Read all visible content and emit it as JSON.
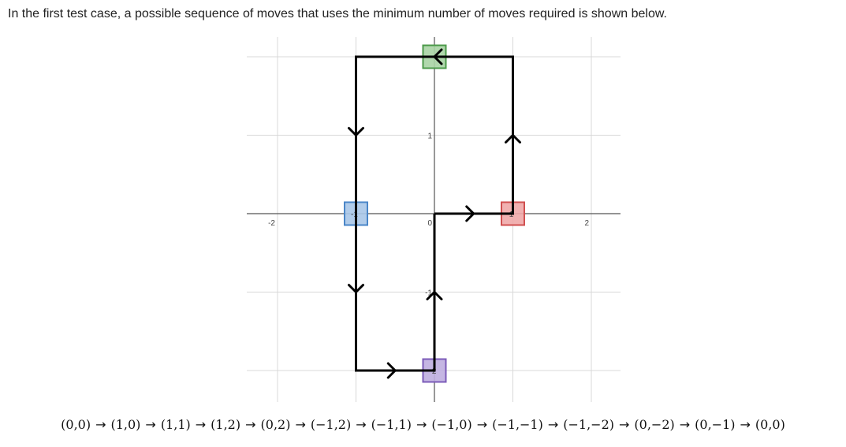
{
  "intro_text": "In the first test case, a possible sequence of moves that uses the minimum number of moves required is shown below.",
  "grid": {
    "x_labels": [
      "-2",
      "0",
      "2"
    ],
    "y_labels": [
      "1",
      "-1"
    ],
    "x_ticks": [
      -2,
      0,
      2
    ],
    "y_ticks": [
      1,
      -1
    ],
    "range_x": [
      -2,
      2
    ],
    "range_y": [
      -2,
      2
    ]
  },
  "path": [
    [
      0,
      0
    ],
    [
      1,
      0
    ],
    [
      1,
      1
    ],
    [
      1,
      2
    ],
    [
      0,
      2
    ],
    [
      -1,
      2
    ],
    [
      -1,
      1
    ],
    [
      -1,
      0
    ],
    [
      -1,
      -1
    ],
    [
      -1,
      -2
    ],
    [
      0,
      -2
    ],
    [
      0,
      -1
    ],
    [
      0,
      0
    ]
  ],
  "arrows": [
    {
      "at": [
        0.5,
        0
      ],
      "dir": "right"
    },
    {
      "at": [
        1,
        1
      ],
      "dir": "up"
    },
    {
      "at": [
        0,
        2
      ],
      "dir": "left"
    },
    {
      "at": [
        -1,
        1
      ],
      "dir": "down"
    },
    {
      "at": [
        -1,
        -1
      ],
      "dir": "down"
    },
    {
      "at": [
        -0.5,
        -2
      ],
      "dir": "right"
    },
    {
      "at": [
        0,
        -1
      ],
      "dir": "up"
    }
  ],
  "markers": [
    {
      "name": "green",
      "at": [
        0,
        2
      ],
      "fill": "#a8d4a4",
      "stroke": "#4c9a4a",
      "label": ""
    },
    {
      "name": "red",
      "at": [
        1,
        0
      ],
      "fill": "#f0a8a8",
      "stroke": "#d05050",
      "label": "1"
    },
    {
      "name": "blue",
      "at": [
        -1,
        0
      ],
      "fill": "#a9c6e8",
      "stroke": "#4a86c8",
      "label": "-1"
    },
    {
      "name": "purple",
      "at": [
        0,
        -2
      ],
      "fill": "#bfaee0",
      "stroke": "#7b5bb8",
      "label": "-2"
    }
  ],
  "sequence": [
    "(0,0)",
    "(1,0)",
    "(1,1)",
    "(1,2)",
    "(0,2)",
    "(−1,2)",
    "(−1,1)",
    "(−1,0)",
    "(−1,−1)",
    "(−1,−2)",
    "(0,−2)",
    "(0,−1)",
    "(0,0)"
  ],
  "arrow_glyph": "→",
  "colors": {
    "grid": "#d8d8d8",
    "axis": "#555555",
    "path": "#000000"
  }
}
